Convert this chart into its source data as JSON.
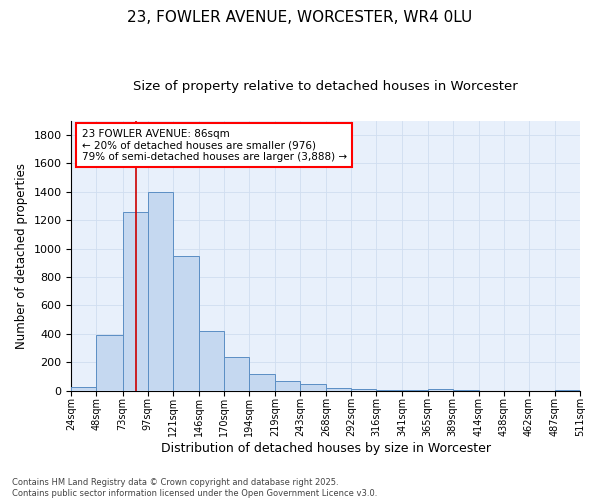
{
  "title": "23, FOWLER AVENUE, WORCESTER, WR4 0LU",
  "subtitle": "Size of property relative to detached houses in Worcester",
  "xlabel": "Distribution of detached houses by size in Worcester",
  "ylabel": "Number of detached properties",
  "bar_color": "#c5d8f0",
  "bar_edge_color": "#5b8ec4",
  "background_color": "#e8f0fb",
  "grid_color": "#d0ddf0",
  "vline_x": 86,
  "vline_color": "#cc0000",
  "bin_edges": [
    24,
    48,
    73,
    97,
    121,
    146,
    170,
    194,
    219,
    243,
    268,
    292,
    316,
    341,
    365,
    389,
    414,
    438,
    462,
    487,
    511
  ],
  "bin_counts": [
    25,
    390,
    1260,
    1400,
    950,
    420,
    235,
    115,
    70,
    45,
    20,
    15,
    8,
    5,
    15,
    3,
    2,
    2,
    2,
    5
  ],
  "ylim": [
    0,
    1900
  ],
  "yticks": [
    0,
    200,
    400,
    600,
    800,
    1000,
    1200,
    1400,
    1600,
    1800
  ],
  "annotation_text": "23 FOWLER AVENUE: 86sqm\n← 20% of detached houses are smaller (976)\n79% of semi-detached houses are larger (3,888) →",
  "footer_text": "Contains HM Land Registry data © Crown copyright and database right 2025.\nContains public sector information licensed under the Open Government Licence v3.0.",
  "title_fontsize": 11,
  "subtitle_fontsize": 9.5,
  "tick_label_fontsize": 7,
  "ylabel_fontsize": 8.5,
  "xlabel_fontsize": 9,
  "annotation_fontsize": 7.5,
  "footer_fontsize": 6
}
